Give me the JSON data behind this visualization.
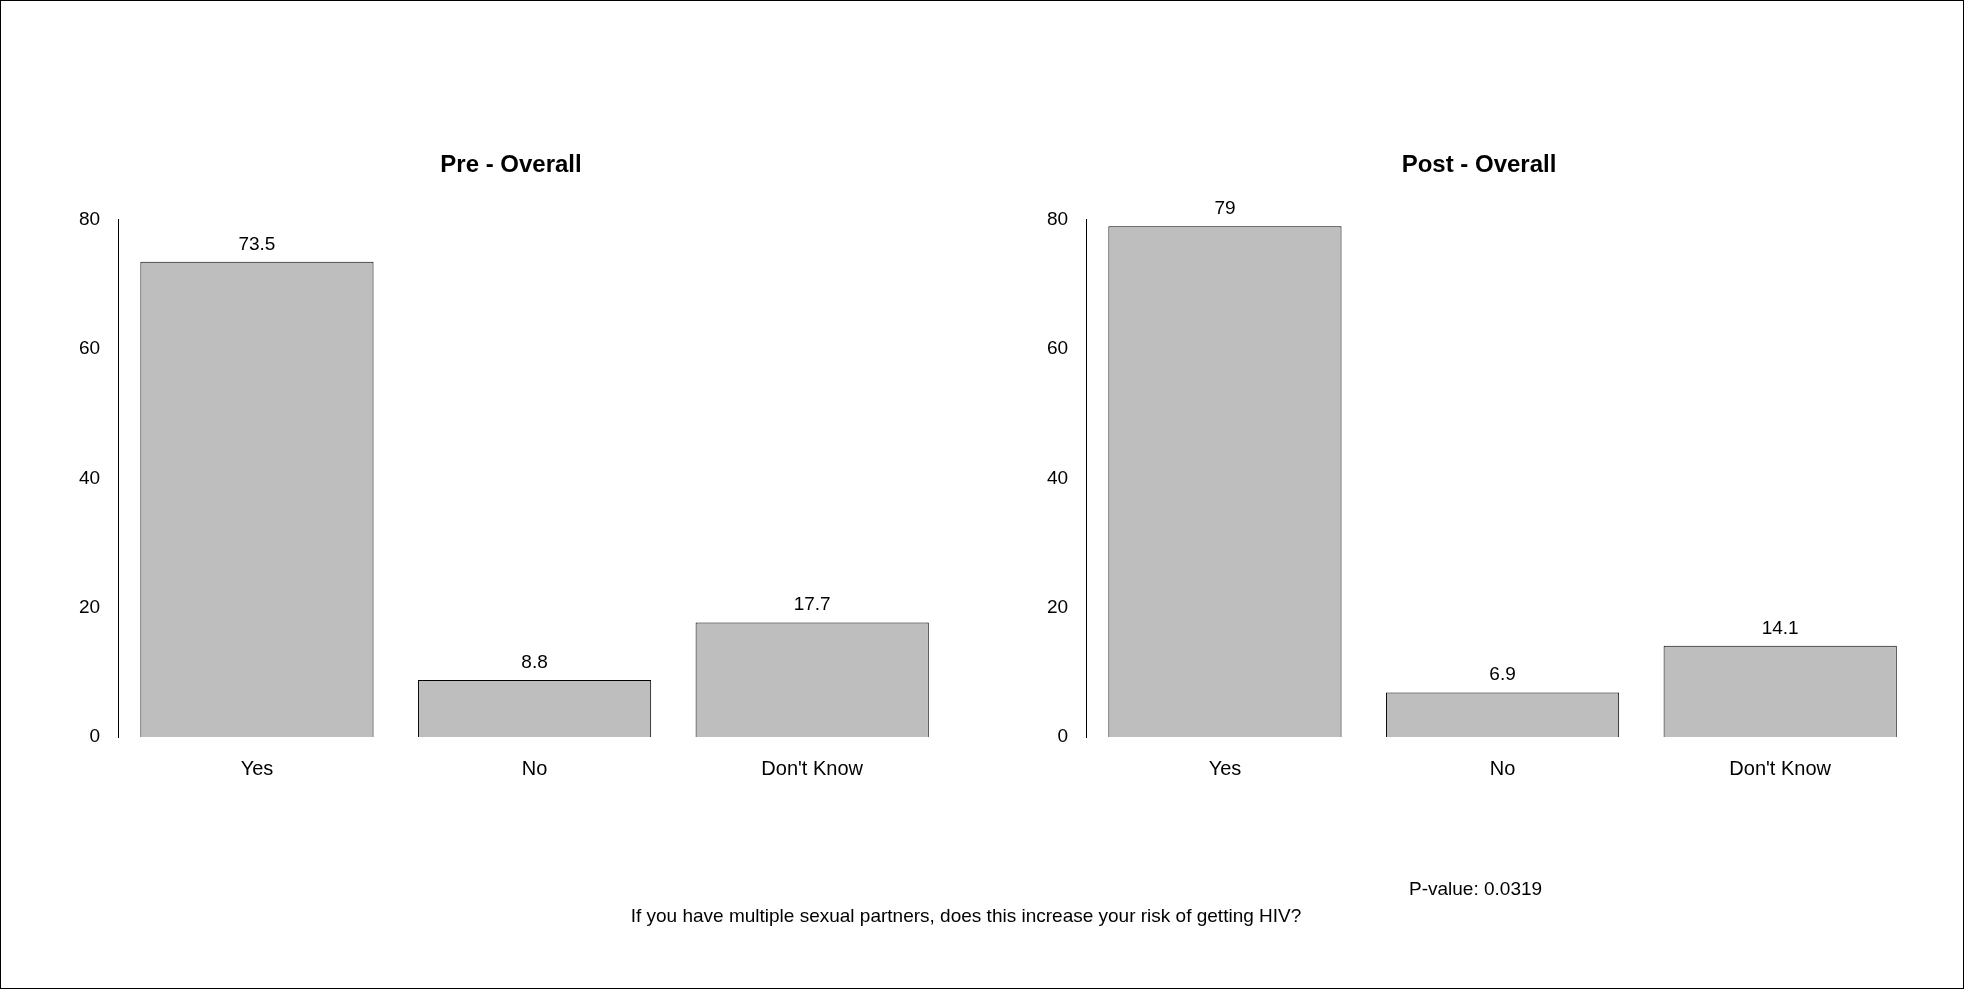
{
  "chart_data": [
    {
      "type": "bar",
      "title": "Pre - Overall",
      "categories": [
        "Yes",
        "No",
        "Don't Know"
      ],
      "values": [
        73.5,
        8.8,
        17.7
      ],
      "color": "#bebebe",
      "ylim": [
        0,
        80
      ],
      "yticks": [
        0,
        20,
        40,
        60,
        80
      ],
      "data_labels": true
    },
    {
      "type": "bar",
      "title": "Post - Overall",
      "categories": [
        "Yes",
        "No",
        "Don't Know"
      ],
      "values": [
        79,
        6.9,
        14.1
      ],
      "color": "#bebebe",
      "ylim": [
        0,
        80
      ],
      "yticks": [
        0,
        20,
        40,
        60,
        80
      ],
      "data_labels": true,
      "annotations": [
        "P-value: 0.0319",
        "If you have multiple sexual partners, does this increase your risk of getting HIV?"
      ]
    }
  ]
}
